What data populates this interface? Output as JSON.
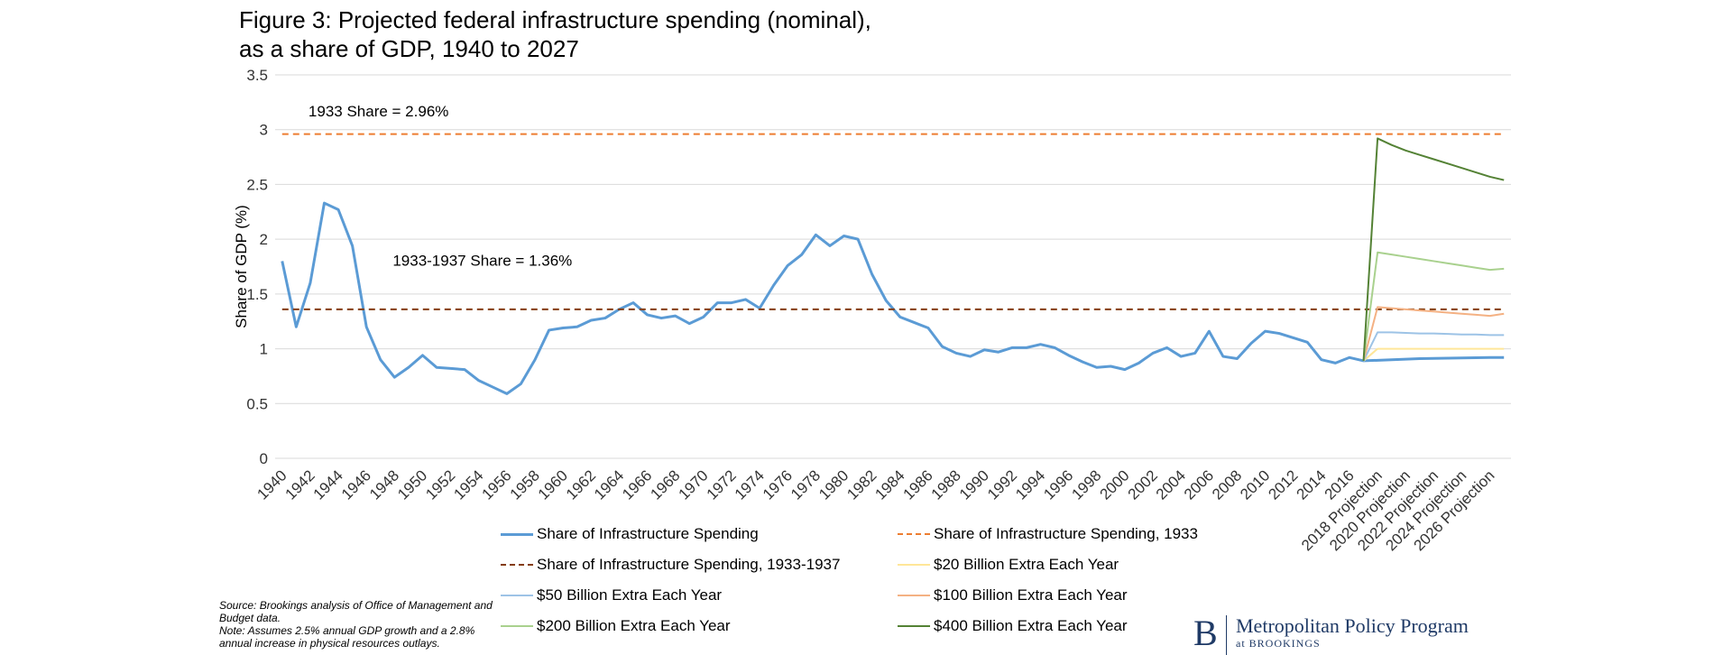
{
  "chart": {
    "title_line1": "Figure 3: Projected federal infrastructure spending (nominal),",
    "title_line2": "as a share of GDP, 1940 to 2027"
  },
  "footer": {
    "source": "Source: Brookings analysis of Office of Management and Budget data.",
    "note": "Note: Assumes 2.5% annual GDP growth and a 2.8% annual increase in physical resources outlays."
  },
  "logo": {
    "mark": "B",
    "name": "Metropolitan Policy Program",
    "sub": "at BROOKINGS"
  },
  "colors": {
    "base": "#5b9bd5",
    "ref1933": "#ed7d31",
    "ref1933_1937": "#843c0c",
    "extra20": "#ffe699",
    "extra50": "#9dc3e6",
    "extra100": "#f4b183",
    "extra200": "#a9d18e",
    "extra400": "#548235",
    "grid": "#d9d9d9"
  },
  "chart_data": {
    "type": "line",
    "title": "Figure 3: Projected federal infrastructure spending (nominal), as a share of GDP, 1940 to 2027",
    "xlabel": "",
    "ylabel": "Share of GDP (%)",
    "ylim": [
      0,
      3.5
    ],
    "yticks": [
      "0",
      "0.5",
      "1",
      "1.5",
      "2",
      "2.5",
      "3",
      "3.5"
    ],
    "grid": true,
    "legend_position": "bottom",
    "x_categories": [
      "1940",
      "1941",
      "1942",
      "1943",
      "1944",
      "1945",
      "1946",
      "1947",
      "1948",
      "1949",
      "1950",
      "1951",
      "1952",
      "1953",
      "1954",
      "1955",
      "1956",
      "1957",
      "1958",
      "1959",
      "1960",
      "1961",
      "1962",
      "1963",
      "1964",
      "1965",
      "1966",
      "1967",
      "1968",
      "1969",
      "1970",
      "1971",
      "1972",
      "1973",
      "1974",
      "1975",
      "1976",
      "1977",
      "1978",
      "1979",
      "1980",
      "1981",
      "1982",
      "1983",
      "1984",
      "1985",
      "1986",
      "1987",
      "1988",
      "1989",
      "1990",
      "1991",
      "1992",
      "1993",
      "1994",
      "1995",
      "1996",
      "1997",
      "1998",
      "1999",
      "2000",
      "2001",
      "2002",
      "2003",
      "2004",
      "2005",
      "2006",
      "2007",
      "2008",
      "2009",
      "2010",
      "2011",
      "2012",
      "2013",
      "2014",
      "2015",
      "2016",
      "2017",
      "2018 Projection",
      "2019 Projection",
      "2020 Projection",
      "2021 Projection",
      "2022 Projection",
      "2023 Projection",
      "2024 Projection",
      "2025 Projection",
      "2026 Projection",
      "2027 Projection"
    ],
    "x_tick_labels": [
      "1940",
      "1942",
      "1944",
      "1946",
      "1948",
      "1950",
      "1952",
      "1954",
      "1956",
      "1958",
      "1960",
      "1962",
      "1964",
      "1966",
      "1968",
      "1970",
      "1972",
      "1974",
      "1976",
      "1978",
      "1980",
      "1982",
      "1984",
      "1986",
      "1988",
      "1990",
      "1992",
      "1994",
      "1996",
      "1998",
      "2000",
      "2002",
      "2004",
      "2006",
      "2008",
      "2010",
      "2012",
      "2014",
      "2016",
      "2018 Projection",
      "2020 Projection",
      "2022 Projection",
      "2024 Projection",
      "2026 Projection"
    ],
    "annotations": [
      {
        "text": "1933 Share = 2.96%",
        "x": "1942",
        "y": 3.12
      },
      {
        "text": "1933-1937 Share = 1.36%",
        "x": "1948",
        "y": 1.76
      }
    ],
    "series": [
      {
        "name": "Share of Infrastructure Spending",
        "color_key": "base",
        "dash": false,
        "start_index": 0,
        "values": [
          1.8,
          1.2,
          1.6,
          2.33,
          2.27,
          1.94,
          1.2,
          0.9,
          0.74,
          0.83,
          0.94,
          0.83,
          0.82,
          0.81,
          0.71,
          0.65,
          0.59,
          0.68,
          0.9,
          1.17,
          1.19,
          1.2,
          1.26,
          1.28,
          1.36,
          1.42,
          1.31,
          1.28,
          1.3,
          1.23,
          1.29,
          1.42,
          1.42,
          1.45,
          1.37,
          1.58,
          1.76,
          1.86,
          2.04,
          1.94,
          2.03,
          2.0,
          1.68,
          1.44,
          1.29,
          1.24,
          1.19,
          1.02,
          0.96,
          0.93,
          0.99,
          0.97,
          1.01,
          1.01,
          1.04,
          1.01,
          0.94,
          0.88,
          0.83,
          0.84,
          0.81,
          0.87,
          0.96,
          1.01,
          0.93,
          0.96,
          1.16,
          0.93,
          0.91,
          1.05,
          1.16,
          1.14,
          1.1,
          1.06,
          0.9,
          0.87,
          0.92,
          0.89,
          0.895,
          0.9,
          0.905,
          0.91,
          0.912,
          0.914,
          0.916,
          0.918,
          0.92,
          0.92
        ]
      },
      {
        "name": "Share of Infrastructure Spending, 1933",
        "color_key": "ref1933",
        "dash": true,
        "constant": 2.96
      },
      {
        "name": "Share of Infrastructure Spending, 1933-1937",
        "color_key": "ref1933_1937",
        "dash": true,
        "constant": 1.36
      },
      {
        "name": "$20 Billion Extra Each Year",
        "color_key": "extra20",
        "dash": false,
        "start_index": 77,
        "values": [
          0.89,
          1.0,
          1.0,
          1.0,
          1.0,
          1.0,
          1.0,
          1.0,
          1.0,
          1.0,
          1.0
        ]
      },
      {
        "name": "$50 Billion Extra Each Year",
        "color_key": "extra50",
        "dash": false,
        "start_index": 77,
        "values": [
          0.89,
          1.15,
          1.15,
          1.145,
          1.14,
          1.14,
          1.135,
          1.13,
          1.13,
          1.125,
          1.125
        ]
      },
      {
        "name": "$100 Billion Extra Each Year",
        "color_key": "extra100",
        "dash": false,
        "start_index": 77,
        "values": [
          0.89,
          1.38,
          1.37,
          1.36,
          1.35,
          1.34,
          1.33,
          1.32,
          1.31,
          1.3,
          1.32
        ]
      },
      {
        "name": "$200 Billion Extra Each Year",
        "color_key": "extra200",
        "dash": false,
        "start_index": 77,
        "values": [
          0.89,
          1.88,
          1.86,
          1.84,
          1.82,
          1.8,
          1.78,
          1.76,
          1.74,
          1.72,
          1.73
        ]
      },
      {
        "name": "$400 Billion Extra Each Year",
        "color_key": "extra400",
        "dash": false,
        "start_index": 77,
        "values": [
          0.89,
          2.92,
          2.86,
          2.81,
          2.77,
          2.73,
          2.69,
          2.65,
          2.61,
          2.57,
          2.54
        ]
      }
    ]
  }
}
